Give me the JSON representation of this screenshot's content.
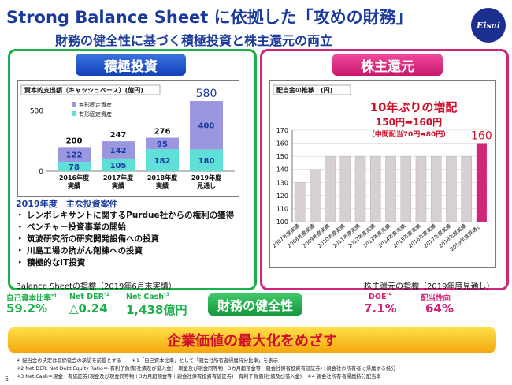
{
  "header": {
    "title": "Strong Balance Sheet に依拠した「攻めの財務」",
    "subtitle": "財務の健全性に基づく積極投資と株主還元の両立",
    "logo_text": "Eisai"
  },
  "left_panel": {
    "tab": "積極投資",
    "chart_title": "資本的支出額（キャッシュベース）(億円)",
    "legend": [
      "無形固定資産",
      "有形固定資産"
    ],
    "projects_title": "2019年度　主な投資案件",
    "projects": [
      "・ レンボレキサントに関するPurdue社からの権利の獲得",
      "・ ベンチャー投資事業の開始",
      "・ 筑波研究所の研究開発設備への投資",
      "・ 川島工場の抗がん剤棟への投資",
      "・ 積極的なIT投資"
    ]
  },
  "right_panel": {
    "tab": "株主還元",
    "chart_title": "配当金の推移　(円)",
    "headline": "10年ぶりの増配",
    "sub1": "150円➡160円",
    "sub2": "（中間配当70円➡80円）"
  },
  "metrics": {
    "left_caption": "Balance Sheetの指標（2019年6月末実績）",
    "right_caption": "株主還元の指標（2019年度見通し）",
    "equity_label": "自己資本比率",
    "equity_sup": "*1",
    "equity_value": "59.2%",
    "der_label": "Net DER",
    "der_sup": "*2",
    "der_value": "△0.24",
    "cash_label": "Net Cash",
    "cash_sup": "*3",
    "cash_value": "1,438億円",
    "doe_label": "DOE",
    "doe_sup": "*4",
    "doe_value": "7.1%",
    "payout_label": "配当性向",
    "payout_value": "64%",
    "health_badge": "財務の健全性"
  },
  "banner": "企業価値の最大化をめざす",
  "notes": [
    "＊ 配当金の決定は取締役会の承認を前提とする　　＊1「自己資本比率」として「親会社所有者帰属持分比率」を表示",
    "＊2 Net DER: Net Debt Equity Ratio＝(有利子負債(社債及び借入金)－現金及び現金同等物－3カ月超預金等－親会社保有投資有価証券)÷親会社の所有者に帰属する持分",
    "＊3 Net Cash＝現金・有価証券(現金及び現金同等物＋3カ月超預金等＋親会社保有投資有価証券)－有利子負債(社債及び借入金)　＊4 親会社所有者帰属持分配当率"
  ],
  "page_number": "5",
  "chart_data": [
    {
      "type": "bar",
      "stacked": true,
      "categories": [
        "2016年度\n実績",
        "2017年度\n実績",
        "2018年度\n実績",
        "2019年度\n見通し"
      ],
      "series": [
        {
          "name": "有形固定資産",
          "values": [
            78,
            105,
            182,
            180
          ],
          "color": "#5ee0d8"
        },
        {
          "name": "無形固定資産",
          "values": [
            122,
            142,
            95,
            400
          ],
          "color": "#9a96e0"
        }
      ],
      "totals": [
        200,
        247,
        276,
        580
      ],
      "ylim": [
        0,
        600
      ],
      "yticks": [
        0,
        500
      ]
    },
    {
      "type": "bar",
      "categories": [
        "2007年度実績",
        "2008年度実績",
        "2009年度実績",
        "2010年度実績",
        "2011年度実績",
        "2012年度実績",
        "2013年度実績",
        "2014年度実績",
        "2015年度実績",
        "2016年度実績",
        "2017年度実績",
        "2018年度実績",
        "2019年度見通し"
      ],
      "values": [
        130,
        140,
        150,
        150,
        150,
        150,
        150,
        150,
        150,
        150,
        150,
        150,
        160
      ],
      "highlight_label": "160",
      "ylim": [
        100,
        170
      ],
      "yticks": [
        100,
        110,
        120,
        130,
        140,
        150,
        160,
        170
      ],
      "color": "#d6cfd4",
      "highlight_color": "#d0267a"
    }
  ]
}
